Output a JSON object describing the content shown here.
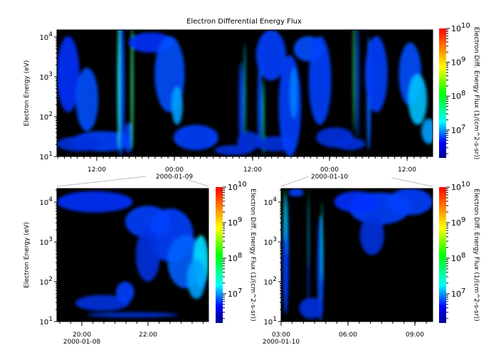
{
  "chart_data": [
    {
      "type": "heatmap",
      "title": "Electron Differential Energy Flux",
      "ylabel": "Electron Energy (eV)",
      "colorbar_label": "Electron Diff. Energy Flux (1/(cm^2-s-sr))",
      "colorbar_ticks": [
        "10^7",
        "10^8",
        "10^9",
        "10^10"
      ],
      "colorbar_range": [
        1500000.0,
        10000000000.0
      ],
      "colormap": "rainbow",
      "yscale": "log",
      "ylim": [
        10,
        20000
      ],
      "ytick_labels": [
        "10^1",
        "10^2",
        "10^3",
        "10^4"
      ],
      "xlim": [
        "2000-01-08 05:50",
        "2000-01-10 16:00"
      ],
      "xtick_labels": [
        {
          "time": "12:00",
          "date": ""
        },
        {
          "time": "00:00",
          "date": "2000-01-09"
        },
        {
          "time": "12:00",
          "date": ""
        },
        {
          "time": "00:00",
          "date": "2000-01-10"
        },
        {
          "time": "12:00",
          "date": ""
        }
      ],
      "background": "#000000"
    },
    {
      "type": "heatmap",
      "ylabel": "Electron Energy (eV)",
      "colorbar_label": "Electron Diff. Energy Flux (1/(cm^2-s-sr))",
      "colorbar_ticks": [
        "10^7",
        "10^8",
        "10^9",
        "10^10"
      ],
      "yscale": "log",
      "ylim": [
        10,
        20000
      ],
      "ytick_labels": [
        "10^1",
        "10^2",
        "10^3",
        "10^4"
      ],
      "xlim": [
        "2000-01-08 19:15",
        "2000-01-08 23:50"
      ],
      "xtick_labels": [
        {
          "time": "20:00",
          "date": "2000-01-08"
        },
        {
          "time": "22:00",
          "date": ""
        }
      ]
    },
    {
      "type": "heatmap",
      "colorbar_label": "Electron Diff. Energy Flux (1/(cm^2-s-sr))",
      "colorbar_ticks": [
        "10^7",
        "10^8",
        "10^9",
        "10^10"
      ],
      "yscale": "log",
      "ylim": [
        10,
        20000
      ],
      "ytick_labels": [
        "10^1",
        "10^2",
        "10^3",
        "10^4"
      ],
      "xlim": [
        "2000-01-10 03:00",
        "2000-01-10 09:48"
      ],
      "xtick_labels": [
        {
          "time": "03:00",
          "date": "2000-01-10"
        },
        {
          "time": "06:00",
          "date": ""
        },
        {
          "time": "09:00",
          "date": ""
        }
      ]
    }
  ]
}
